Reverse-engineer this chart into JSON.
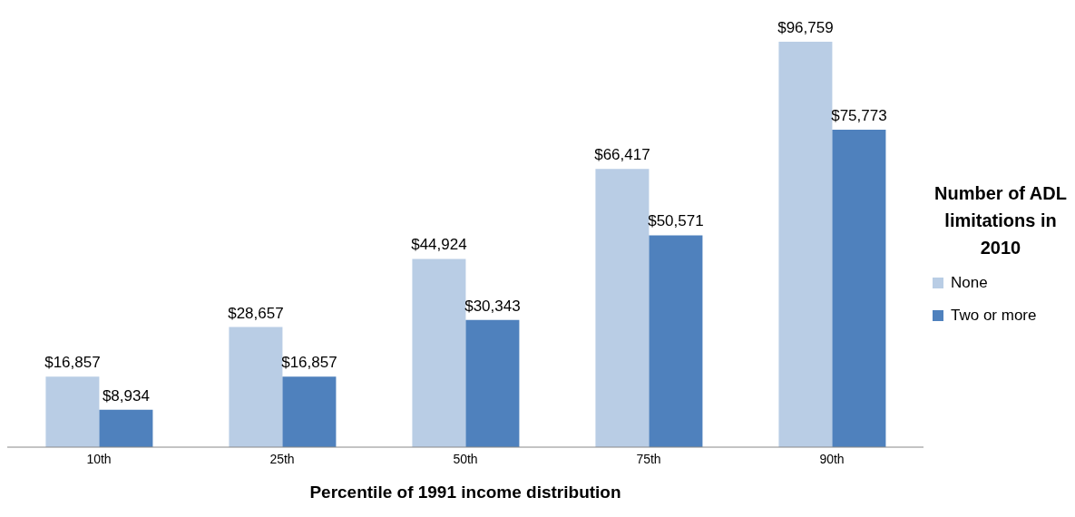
{
  "chart_data": {
    "type": "bar",
    "xlabel": "Percentile of 1991 income distribution",
    "legend_title": "Number of ADL limitations in 2010",
    "legend": "right",
    "categories": [
      "10th",
      "25th",
      "50th",
      "75th",
      "90th"
    ],
    "series": [
      {
        "name": "None",
        "color": "#b9cde5",
        "values": [
          16857,
          28657,
          44924,
          66417,
          96759
        ],
        "value_labels": [
          "$16,857",
          "$28,657",
          "$44,924",
          "$66,417",
          "$96,759"
        ]
      },
      {
        "name": "Two or more",
        "color": "#4f81bd",
        "values": [
          8934,
          16857,
          30343,
          50571,
          75773
        ],
        "value_labels": [
          "$8,934",
          "$16,857",
          "$30,343",
          "$50,571",
          "$75,773"
        ]
      }
    ]
  }
}
